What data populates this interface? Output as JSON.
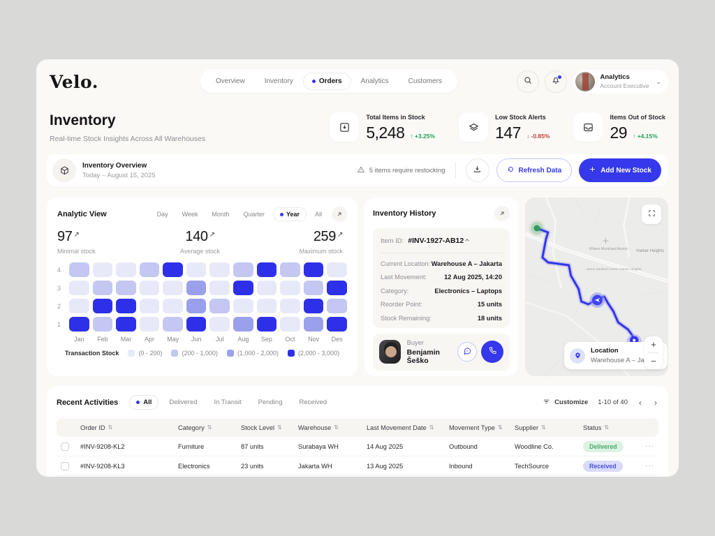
{
  "brand": {
    "logo": "Velo."
  },
  "nav": {
    "tabs": [
      {
        "label": "Overview",
        "active": false
      },
      {
        "label": "Inventory",
        "active": false
      },
      {
        "label": "Orders",
        "active": true
      },
      {
        "label": "Analytics",
        "active": false
      },
      {
        "label": "Customers",
        "active": false
      }
    ]
  },
  "header": {
    "user": {
      "name": "Analytics",
      "role": "Account Executive"
    }
  },
  "heading": {
    "title": "Inventory",
    "subtitle": "Real-time Stock Insights Across All Warehouses"
  },
  "kpis": [
    {
      "icon": "box-in-icon",
      "label": "Total Items in Stock",
      "value": "5,248",
      "change": "+3.25%",
      "direction": "up",
      "arrow": "↑"
    },
    {
      "icon": "layers-icon",
      "label": "Low Stock Alerts",
      "value": "147",
      "change": "-0.85%",
      "direction": "down",
      "arrow": "↓"
    },
    {
      "icon": "box-out-icon",
      "label": "Items Out of Stock",
      "value": "29",
      "change": "+4.15%",
      "direction": "up",
      "arrow": "↑"
    }
  ],
  "overview_bar": {
    "title": "Inventory Overview",
    "date": "Today – August 15, 2025",
    "alert": "5 items require restocking",
    "refresh_label": "Refresh Data",
    "add_label": "Add New Stock"
  },
  "analytic": {
    "title": "Analytic View",
    "ranges": [
      {
        "label": "Day",
        "active": false
      },
      {
        "label": "Week",
        "active": false
      },
      {
        "label": "Month",
        "active": false
      },
      {
        "label": "Quarter",
        "active": false
      },
      {
        "label": "Year",
        "active": true
      },
      {
        "label": "All",
        "active": false
      }
    ],
    "stats": [
      {
        "value": "97",
        "label": "Minimal stock"
      },
      {
        "value": "140",
        "label": "Average stock"
      },
      {
        "value": "259",
        "label": "Maximum stock"
      }
    ]
  },
  "chart_data": {
    "type": "heatmap",
    "title": "Analytic View — transaction stock heatmap",
    "x_labels": [
      "Jan",
      "Feb",
      "Mar",
      "Apr",
      "May",
      "Jun",
      "Jul",
      "Aug",
      "Sep",
      "Oct",
      "Nov",
      "Des"
    ],
    "y_labels": [
      "4",
      "3",
      "2",
      "1"
    ],
    "legend_title": "Transaction Stock",
    "legend": [
      {
        "label": "(0 - 200)",
        "level": 1,
        "color": "#e8e9f8"
      },
      {
        "label": "(200 - 1,000)",
        "level": 2,
        "color": "#c4c7f1"
      },
      {
        "label": "(1,000 - 2,000)",
        "level": 3,
        "color": "#9aa0ec"
      },
      {
        "label": "(2,000 - 3,000)",
        "level": 4,
        "color": "#2e30e9"
      }
    ],
    "rows": [
      {
        "y": "4",
        "levels": [
          2,
          1,
          1,
          2,
          4,
          1,
          1,
          2,
          4,
          2,
          4,
          1
        ]
      },
      {
        "y": "3",
        "levels": [
          1,
          2,
          2,
          1,
          1,
          3,
          1,
          4,
          1,
          1,
          2,
          4
        ]
      },
      {
        "y": "2",
        "levels": [
          1,
          4,
          4,
          1,
          1,
          3,
          2,
          1,
          1,
          1,
          4,
          2
        ]
      },
      {
        "y": "1",
        "levels": [
          4,
          2,
          4,
          1,
          2,
          4,
          1,
          3,
          4,
          1,
          3,
          4
        ]
      }
    ]
  },
  "history": {
    "title": "Inventory History",
    "item_id_label": "Item ID:",
    "item_id": "#INV-1927-AB12",
    "details": [
      {
        "label": "Current Location:",
        "value": "Warehouse A – Jakarta"
      },
      {
        "label": "Last Movement:",
        "value": "12 Aug 2025, 14:20"
      },
      {
        "label": "Category:",
        "value": "Electronics – Laptops"
      },
      {
        "label": "Reorder Point:",
        "value": "15 units"
      },
      {
        "label": "Stock Remaining:",
        "value": "18 units"
      }
    ],
    "buyer": {
      "label": "Buyer",
      "name": "Benjamin Šeško"
    }
  },
  "map": {
    "labels": [
      "Harker Heights",
      "Killeen Municipal Airport",
      "Seton Medical Center Harker Heights"
    ],
    "location_label": "Location",
    "location_value": "Warehouse A – Jakarta",
    "zoom_in": "+",
    "zoom_out": "−"
  },
  "activities": {
    "title": "Recent Activities",
    "filters": [
      {
        "label": "All",
        "active": true
      },
      {
        "label": "Delivered",
        "active": false
      },
      {
        "label": "In Transit",
        "active": false
      },
      {
        "label": "Pending",
        "active": false
      },
      {
        "label": "Received",
        "active": false
      }
    ],
    "customize_label": "Customize",
    "pagination": "1-10 of 40",
    "columns": [
      "Order ID",
      "Category",
      "Stock Level",
      "Warehouse",
      "Last Movement Date",
      "Movement Type",
      "Supplier",
      "Status"
    ],
    "rows": [
      {
        "order_id": "#INV-9208-KL2",
        "category": "Furniture",
        "stock": "87 units",
        "warehouse": "Surabaya WH",
        "date": "14 Aug 2025",
        "movement": "Outbound",
        "supplier": "Woodline Co.",
        "status": "Delivered"
      },
      {
        "order_id": "#INV-9208-KL3",
        "category": "Electronics",
        "stock": "23 units",
        "warehouse": "Jakarta WH",
        "date": "13 Aug 2025",
        "movement": "Inbound",
        "supplier": "TechSource",
        "status": "Received"
      }
    ]
  }
}
